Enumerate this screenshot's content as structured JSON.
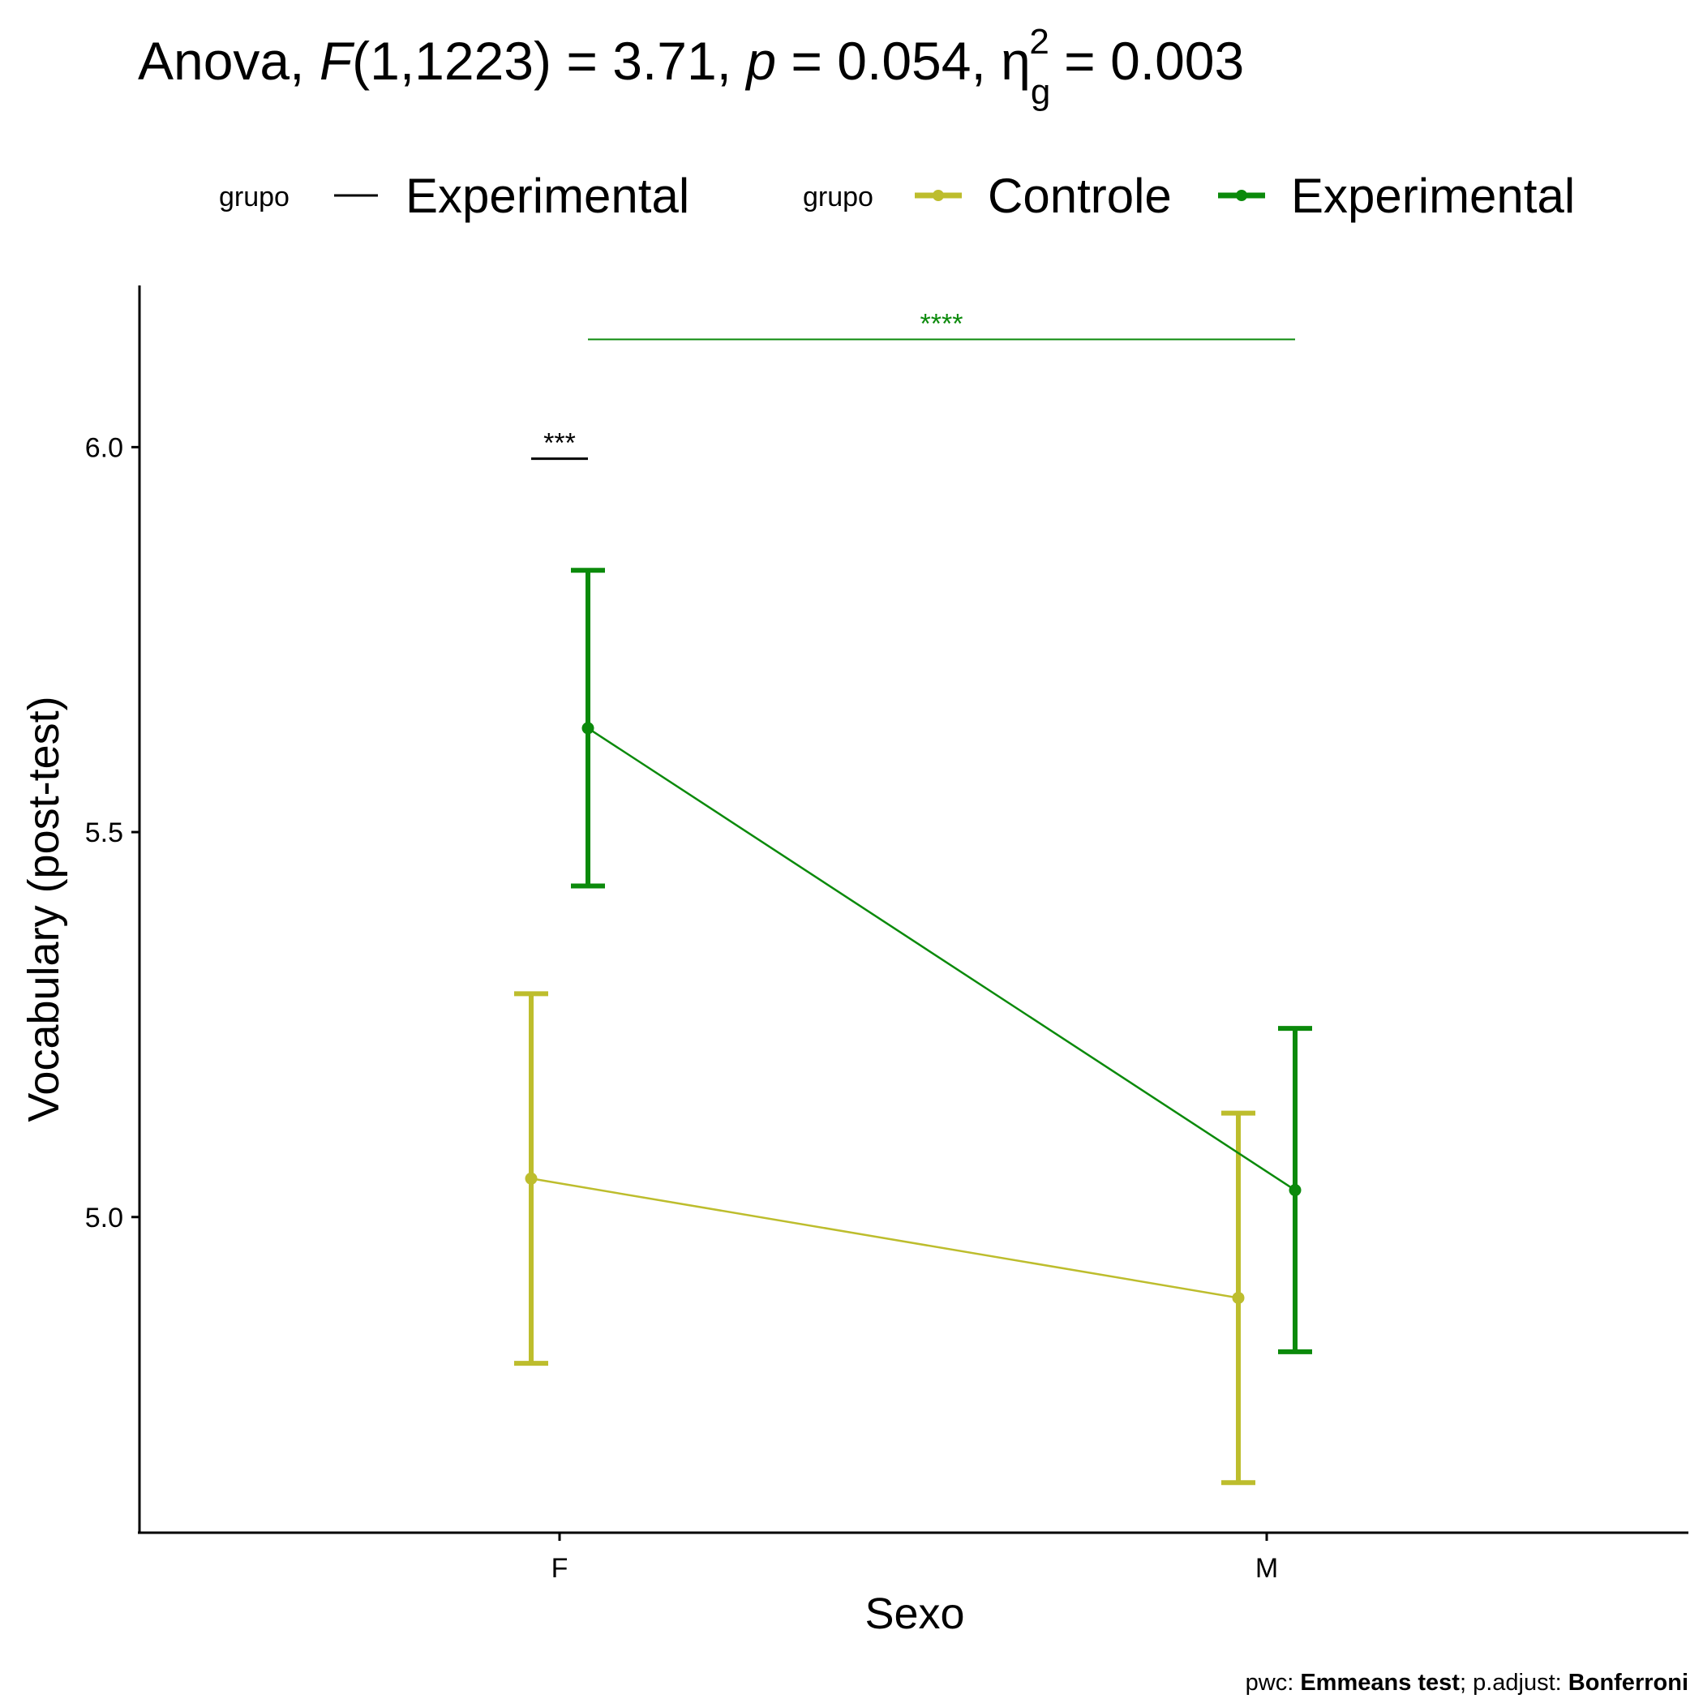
{
  "chart_data": {
    "type": "line",
    "title": {
      "test": "Anova",
      "stat_symbol": "F",
      "df": "(1,1223)",
      "stat_value": "3.71",
      "p_symbol": "p",
      "p_value": "0.054",
      "eta_symbol": "η",
      "eta_sub": "g",
      "eta_sup": "2",
      "eta_value": "0.003"
    },
    "legend_line": {
      "title": "grupo",
      "label": "Experimental",
      "color": "#000000"
    },
    "legend": {
      "title": "grupo",
      "position": "top"
    },
    "xlabel": "Sexo",
    "ylabel": "Vocabulary (post-test)",
    "categories": [
      "F",
      "M"
    ],
    "ylim": [
      4.59,
      6.21
    ],
    "yticks": [
      5.0,
      5.5,
      6.0
    ],
    "ytick_labels": [
      "5.0",
      "5.5",
      "6.0"
    ],
    "grid": false,
    "series": [
      {
        "name": "Controle",
        "color": "#BDBD2D",
        "values": [
          5.05,
          4.895
        ],
        "lower": [
          4.81,
          4.655
        ],
        "upper": [
          5.29,
          5.135
        ]
      },
      {
        "name": "Experimental",
        "color": "#0B8A0B",
        "values": [
          5.635,
          5.035
        ],
        "lower": [
          5.43,
          4.825
        ],
        "upper": [
          5.84,
          5.245
        ]
      }
    ],
    "annotations": [
      {
        "label": "***",
        "color": "#000000",
        "y": 5.985,
        "from": "F",
        "series_from": "Controle",
        "series_to": "Experimental"
      },
      {
        "label": "****",
        "color": "#0B8A0B",
        "y": 6.14,
        "from": "F",
        "to": "M",
        "series": "Experimental"
      }
    ],
    "caption": {
      "prefix": "pwc: ",
      "method": "Emmeans test",
      "middle": "; p.adjust: ",
      "adjust": "Bonferroni"
    }
  }
}
